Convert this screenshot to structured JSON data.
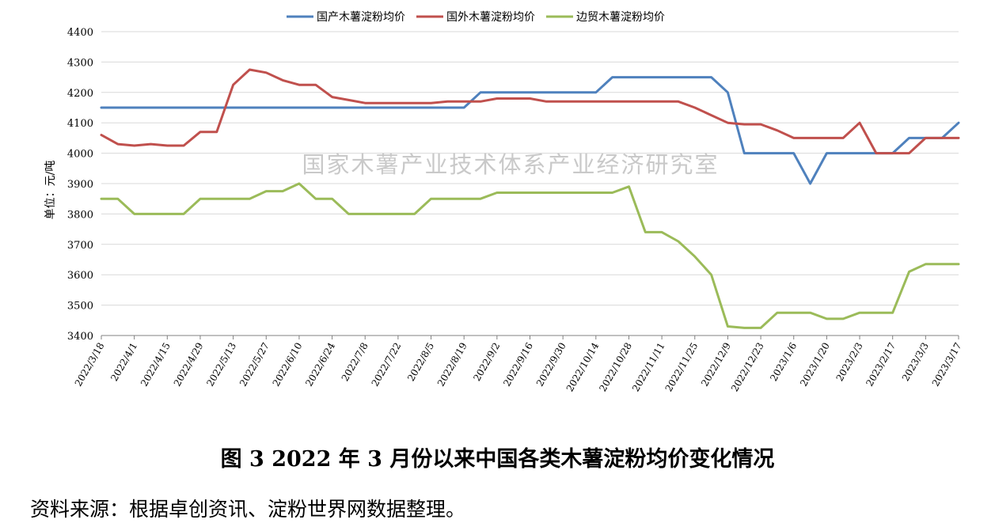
{
  "chart_data": {
    "type": "line",
    "ylabel": "单位：元/吨",
    "ylim": [
      3400,
      4400
    ],
    "yticks": [
      3400,
      3500,
      3600,
      3700,
      3800,
      3900,
      4000,
      4100,
      4200,
      4300,
      4400
    ],
    "grid": true,
    "legend_position": "top",
    "watermark": "国家木薯产业技术体系产业经济研究室",
    "x": [
      "2022/3/18",
      "2022/3/25",
      "2022/4/1",
      "2022/4/8",
      "2022/4/15",
      "2022/4/22",
      "2022/4/29",
      "2022/5/6",
      "2022/5/13",
      "2022/5/20",
      "2022/5/27",
      "2022/6/3",
      "2022/6/10",
      "2022/6/17",
      "2022/6/24",
      "2022/7/1",
      "2022/7/8",
      "2022/7/15",
      "2022/7/22",
      "2022/7/29",
      "2022/8/5",
      "2022/8/12",
      "2022/8/19",
      "2022/8/26",
      "2022/9/2",
      "2022/9/9",
      "2022/9/16",
      "2022/9/23",
      "2022/9/30",
      "2022/10/7",
      "2022/10/14",
      "2022/10/21",
      "2022/10/28",
      "2022/11/4",
      "2022/11/11",
      "2022/11/18",
      "2022/11/25",
      "2022/12/2",
      "2022/12/9",
      "2022/12/16",
      "2022/12/23",
      "2022/12/30",
      "2023/1/6",
      "2023/1/13",
      "2023/1/20",
      "2023/1/27",
      "2023/2/3",
      "2023/2/10",
      "2023/2/17",
      "2023/2/24",
      "2023/3/3",
      "2023/3/10",
      "2023/3/17"
    ],
    "xtick_labels": [
      "2022/3/18",
      "2022/4/1",
      "2022/4/15",
      "2022/4/29",
      "2022/5/13",
      "2022/5/27",
      "2022/6/10",
      "2022/6/24",
      "2022/7/8",
      "2022/7/22",
      "2022/8/5",
      "2022/8/19",
      "2022/9/2",
      "2022/9/16",
      "2022/9/30",
      "2022/10/14",
      "2022/10/28",
      "2022/11/11",
      "2022/11/25",
      "2022/12/9",
      "2022/12/23",
      "2023/1/6",
      "2023/1/20",
      "2023/2/3",
      "2023/2/17",
      "2023/3/3",
      "2023/3/17"
    ],
    "series": [
      {
        "name": "国产木薯淀粉均价",
        "color": "#4f81bd",
        "values": [
          4150,
          4150,
          4150,
          4150,
          4150,
          4150,
          4150,
          4150,
          4150,
          4150,
          4150,
          4150,
          4150,
          4150,
          4150,
          4150,
          4150,
          4150,
          4150,
          4150,
          4150,
          4150,
          4150,
          4200,
          4200,
          4200,
          4200,
          4200,
          4200,
          4200,
          4200,
          4250,
          4250,
          4250,
          4250,
          4250,
          4250,
          4250,
          4200,
          4000,
          4000,
          4000,
          4000,
          3900,
          4000,
          4000,
          4000,
          4000,
          4000,
          4050,
          4050,
          4050,
          4100
        ]
      },
      {
        "name": "国外木薯淀粉均价",
        "color": "#c0504d",
        "values": [
          4060,
          4030,
          4025,
          4030,
          4025,
          4025,
          4070,
          4070,
          4225,
          4275,
          4265,
          4240,
          4225,
          4225,
          4185,
          4175,
          4165,
          4165,
          4165,
          4165,
          4165,
          4170,
          4170,
          4170,
          4180,
          4180,
          4180,
          4170,
          4170,
          4170,
          4170,
          4170,
          4170,
          4170,
          4170,
          4170,
          4150,
          4125,
          4100,
          4095,
          4095,
          4075,
          4050,
          4050,
          4050,
          4050,
          4100,
          4000,
          4000,
          4000,
          4050,
          4050,
          4050
        ]
      },
      {
        "name": "边贸木薯淀粉均价",
        "color": "#9bbb59",
        "values": [
          3850,
          3850,
          3800,
          3800,
          3800,
          3800,
          3850,
          3850,
          3850,
          3850,
          3875,
          3875,
          3900,
          3850,
          3850,
          3800,
          3800,
          3800,
          3800,
          3800,
          3850,
          3850,
          3850,
          3850,
          3870,
          3870,
          3870,
          3870,
          3870,
          3870,
          3870,
          3870,
          3890,
          3740,
          3740,
          3710,
          3660,
          3600,
          3430,
          3425,
          3425,
          3475,
          3475,
          3475,
          3455,
          3455,
          3475,
          3475,
          3475,
          3610,
          3635,
          3635,
          3635
        ]
      }
    ]
  },
  "caption": "图 3   2022 年 3 月份以来中国各类木薯淀粉均价变化情况",
  "source_note": "资料来源：根据卓创资讯、淀粉世界网数据整理。"
}
